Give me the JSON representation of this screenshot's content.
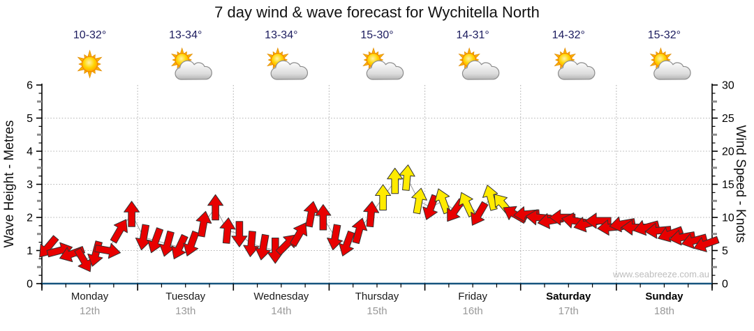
{
  "title": "7 day wind & wave forecast for Wychitella North",
  "watermark": "www.seabreeze.com.au",
  "days": [
    {
      "label": "Monday",
      "date": "12th",
      "temp": "10-32°",
      "icon": "sunny",
      "weekend": false
    },
    {
      "label": "Tuesday",
      "date": "13th",
      "temp": "13-34°",
      "icon": "partly-cloudy",
      "weekend": false
    },
    {
      "label": "Wednesday",
      "date": "14th",
      "temp": "13-34°",
      "icon": "partly-cloudy",
      "weekend": false
    },
    {
      "label": "Thursday",
      "date": "15th",
      "temp": "15-30°",
      "icon": "partly-cloudy",
      "weekend": false
    },
    {
      "label": "Friday",
      "date": "16th",
      "temp": "14-31°",
      "icon": "partly-cloudy",
      "weekend": false
    },
    {
      "label": "Saturday",
      "date": "17th",
      "temp": "14-32°",
      "icon": "partly-cloudy",
      "weekend": true
    },
    {
      "label": "Sunday",
      "date": "18th",
      "temp": "15-32°",
      "icon": "partly-cloudy",
      "weekend": true
    }
  ],
  "axes": {
    "left": {
      "title": "Wave Height - Metres",
      "ticks": [
        0,
        1,
        2,
        3,
        4,
        5,
        6
      ],
      "range": [
        0,
        6
      ]
    },
    "right": {
      "title": "Wind Speed - Knots",
      "ticks": [
        0,
        5,
        10,
        15,
        20,
        25,
        30
      ],
      "range": [
        0,
        30
      ]
    }
  },
  "colors": {
    "light_wind_arrow": "#E80000",
    "moderate_wind_arrow": "#FFEB00",
    "arrow_outline": "#333333",
    "bottom_axis": "#15537E",
    "grid": "#B0B0B0",
    "temp_text": "#1B1B5E",
    "date_text": "#999999",
    "watermark_text": "#BDBDBD"
  },
  "chart_data": {
    "type": "wind-arrow-series",
    "title": "7 day wind & wave forecast for Wychitella North",
    "categories": [
      "Monday 12th",
      "Tuesday 13th",
      "Wednesday 14th",
      "Thursday 15th",
      "Friday 16th",
      "Saturday 17th",
      "Sunday 18th"
    ],
    "points_per_day": 8,
    "x_unit": "3-hour steps across 7 days",
    "left_axis": {
      "label": "Wave Height - Metres",
      "range": [
        0,
        6
      ]
    },
    "right_axis": {
      "label": "Wind Speed - Knots",
      "range": [
        0,
        30
      ]
    },
    "yellow_threshold_knots": 12,
    "grid": "dotted, horizontal each metre, vertical each day boundary",
    "points_format": "[wind_speed_knots, direction_deg_clockwise_from_up]",
    "points": [
      [
        5.5,
        220
      ],
      [
        5,
        75
      ],
      [
        4.5,
        250
      ],
      [
        3.5,
        150
      ],
      [
        4.5,
        195
      ],
      [
        5,
        100
      ],
      [
        8,
        30
      ],
      [
        10.5,
        0
      ],
      [
        7,
        190
      ],
      [
        6.5,
        200
      ],
      [
        6,
        195
      ],
      [
        5.5,
        205
      ],
      [
        6,
        200
      ],
      [
        9,
        10
      ],
      [
        11.5,
        0
      ],
      [
        8,
        5
      ],
      [
        7.5,
        180
      ],
      [
        6,
        185
      ],
      [
        5.5,
        190
      ],
      [
        5,
        180
      ],
      [
        6,
        45
      ],
      [
        7.5,
        30
      ],
      [
        10.5,
        10
      ],
      [
        10,
        0
      ],
      [
        7,
        190
      ],
      [
        6,
        200
      ],
      [
        8,
        15
      ],
      [
        10.5,
        5
      ],
      [
        13,
        0
      ],
      [
        15.5,
        0
      ],
      [
        16,
        5
      ],
      [
        12.5,
        10
      ],
      [
        11.5,
        200
      ],
      [
        12.5,
        340
      ],
      [
        11,
        215
      ],
      [
        12,
        335
      ],
      [
        10.5,
        210
      ],
      [
        13,
        345
      ],
      [
        12,
        320
      ],
      [
        10.5,
        300
      ],
      [
        10.5,
        265
      ],
      [
        10,
        275
      ],
      [
        9.5,
        260
      ],
      [
        10,
        270
      ],
      [
        9.5,
        280
      ],
      [
        9,
        255
      ],
      [
        9.5,
        270
      ],
      [
        8.5,
        265
      ],
      [
        9,
        260
      ],
      [
        8.5,
        270
      ],
      [
        8.5,
        255
      ],
      [
        8,
        265
      ],
      [
        7.5,
        250
      ],
      [
        7,
        260
      ],
      [
        6.5,
        255
      ],
      [
        6,
        250
      ]
    ]
  }
}
